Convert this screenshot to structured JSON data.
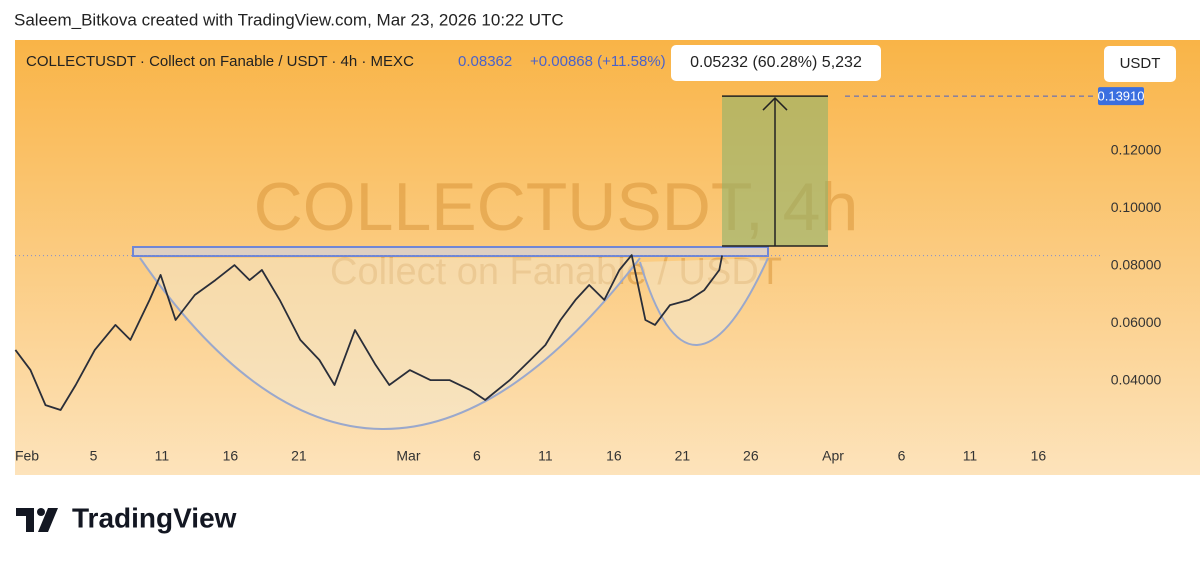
{
  "chart_data": {
    "type": "line",
    "credit": "Saleem_Bitkova created with TradingView.com, Mar 23, 2026 10:22 UTC",
    "title": "COLLECTUSDT · Collect on Fanable / USDT · 4h · MEXC",
    "last_price": {
      "value": 0.08362,
      "label": "0.08362"
    },
    "change": "+0.00868 (+11.58%)",
    "currency": "USDT",
    "watermark": "COLLECTUSDT, 4h",
    "watermark_subtitle": "Collect on Fanable / USDT",
    "measurement": "0.05232 (60.28%) 5,232",
    "target_price": {
      "value": 0.1391,
      "label": "0.13910"
    },
    "brand": "TradingView",
    "xlim": [
      -0.73,
      77.4
    ],
    "ylim": [
      0.0073,
      0.1586
    ],
    "xticks": [
      {
        "value": 0,
        "label": "Feb"
      },
      5,
      {
        "value": 10,
        "label": "11"
      },
      {
        "value": 15,
        "label": "16"
      },
      {
        "value": 20,
        "label": "21"
      },
      {
        "value": 28,
        "label": "Mar"
      },
      {
        "value": 33,
        "label": "6"
      },
      {
        "value": 38,
        "label": "11"
      },
      {
        "value": 43,
        "label": "16"
      },
      {
        "value": 48,
        "label": "21"
      },
      {
        "value": 53,
        "label": "26"
      },
      {
        "value": 59,
        "label": "Apr"
      },
      {
        "value": 64,
        "label": "6"
      },
      {
        "value": 69,
        "label": "11"
      },
      {
        "value": 74,
        "label": "16"
      }
    ],
    "yticks": [
      {
        "value": 0.04,
        "label": "0.04000"
      },
      {
        "value": 0.06,
        "label": "0.06000"
      },
      {
        "value": 0.08,
        "label": "0.08000"
      },
      {
        "value": 0.1,
        "label": "0.10000"
      },
      {
        "value": 0.12,
        "label": "0.12000"
      }
    ],
    "series": [
      {
        "name": "COLLECTUSDT",
        "color": "#2a2e39",
        "x": [
          -0.7,
          0.4,
          1.5,
          2.6,
          3.7,
          5.1,
          6.6,
          7.7,
          9.1,
          9.9,
          11.0,
          12.4,
          13.9,
          15.3,
          16.4,
          17.3,
          18.6,
          20.1,
          21.5,
          22.6,
          24.1,
          25.6,
          26.6,
          28.1,
          29.6,
          31.0,
          32.5,
          33.6,
          35.4,
          36.9,
          38.0,
          39.1,
          40.2,
          41.2,
          42.3,
          43.4,
          44.3,
          45.3,
          46.0,
          47.1,
          48.5,
          49.6,
          50.7,
          50.9
        ],
        "values": [
          0.0508,
          0.0438,
          0.0316,
          0.0299,
          0.0386,
          0.0508,
          0.0595,
          0.0543,
          0.0682,
          0.0769,
          0.0612,
          0.0699,
          0.0751,
          0.0803,
          0.0751,
          0.0786,
          0.0682,
          0.0543,
          0.0473,
          0.0386,
          0.0577,
          0.0456,
          0.0386,
          0.0438,
          0.0403,
          0.0403,
          0.0369,
          0.0334,
          0.0403,
          0.0473,
          0.0525,
          0.0612,
          0.0682,
          0.0734,
          0.0682,
          0.0786,
          0.0838,
          0.0612,
          0.0595,
          0.0664,
          0.0682,
          0.0716,
          0.0786,
          0.0836
        ]
      }
    ]
  }
}
